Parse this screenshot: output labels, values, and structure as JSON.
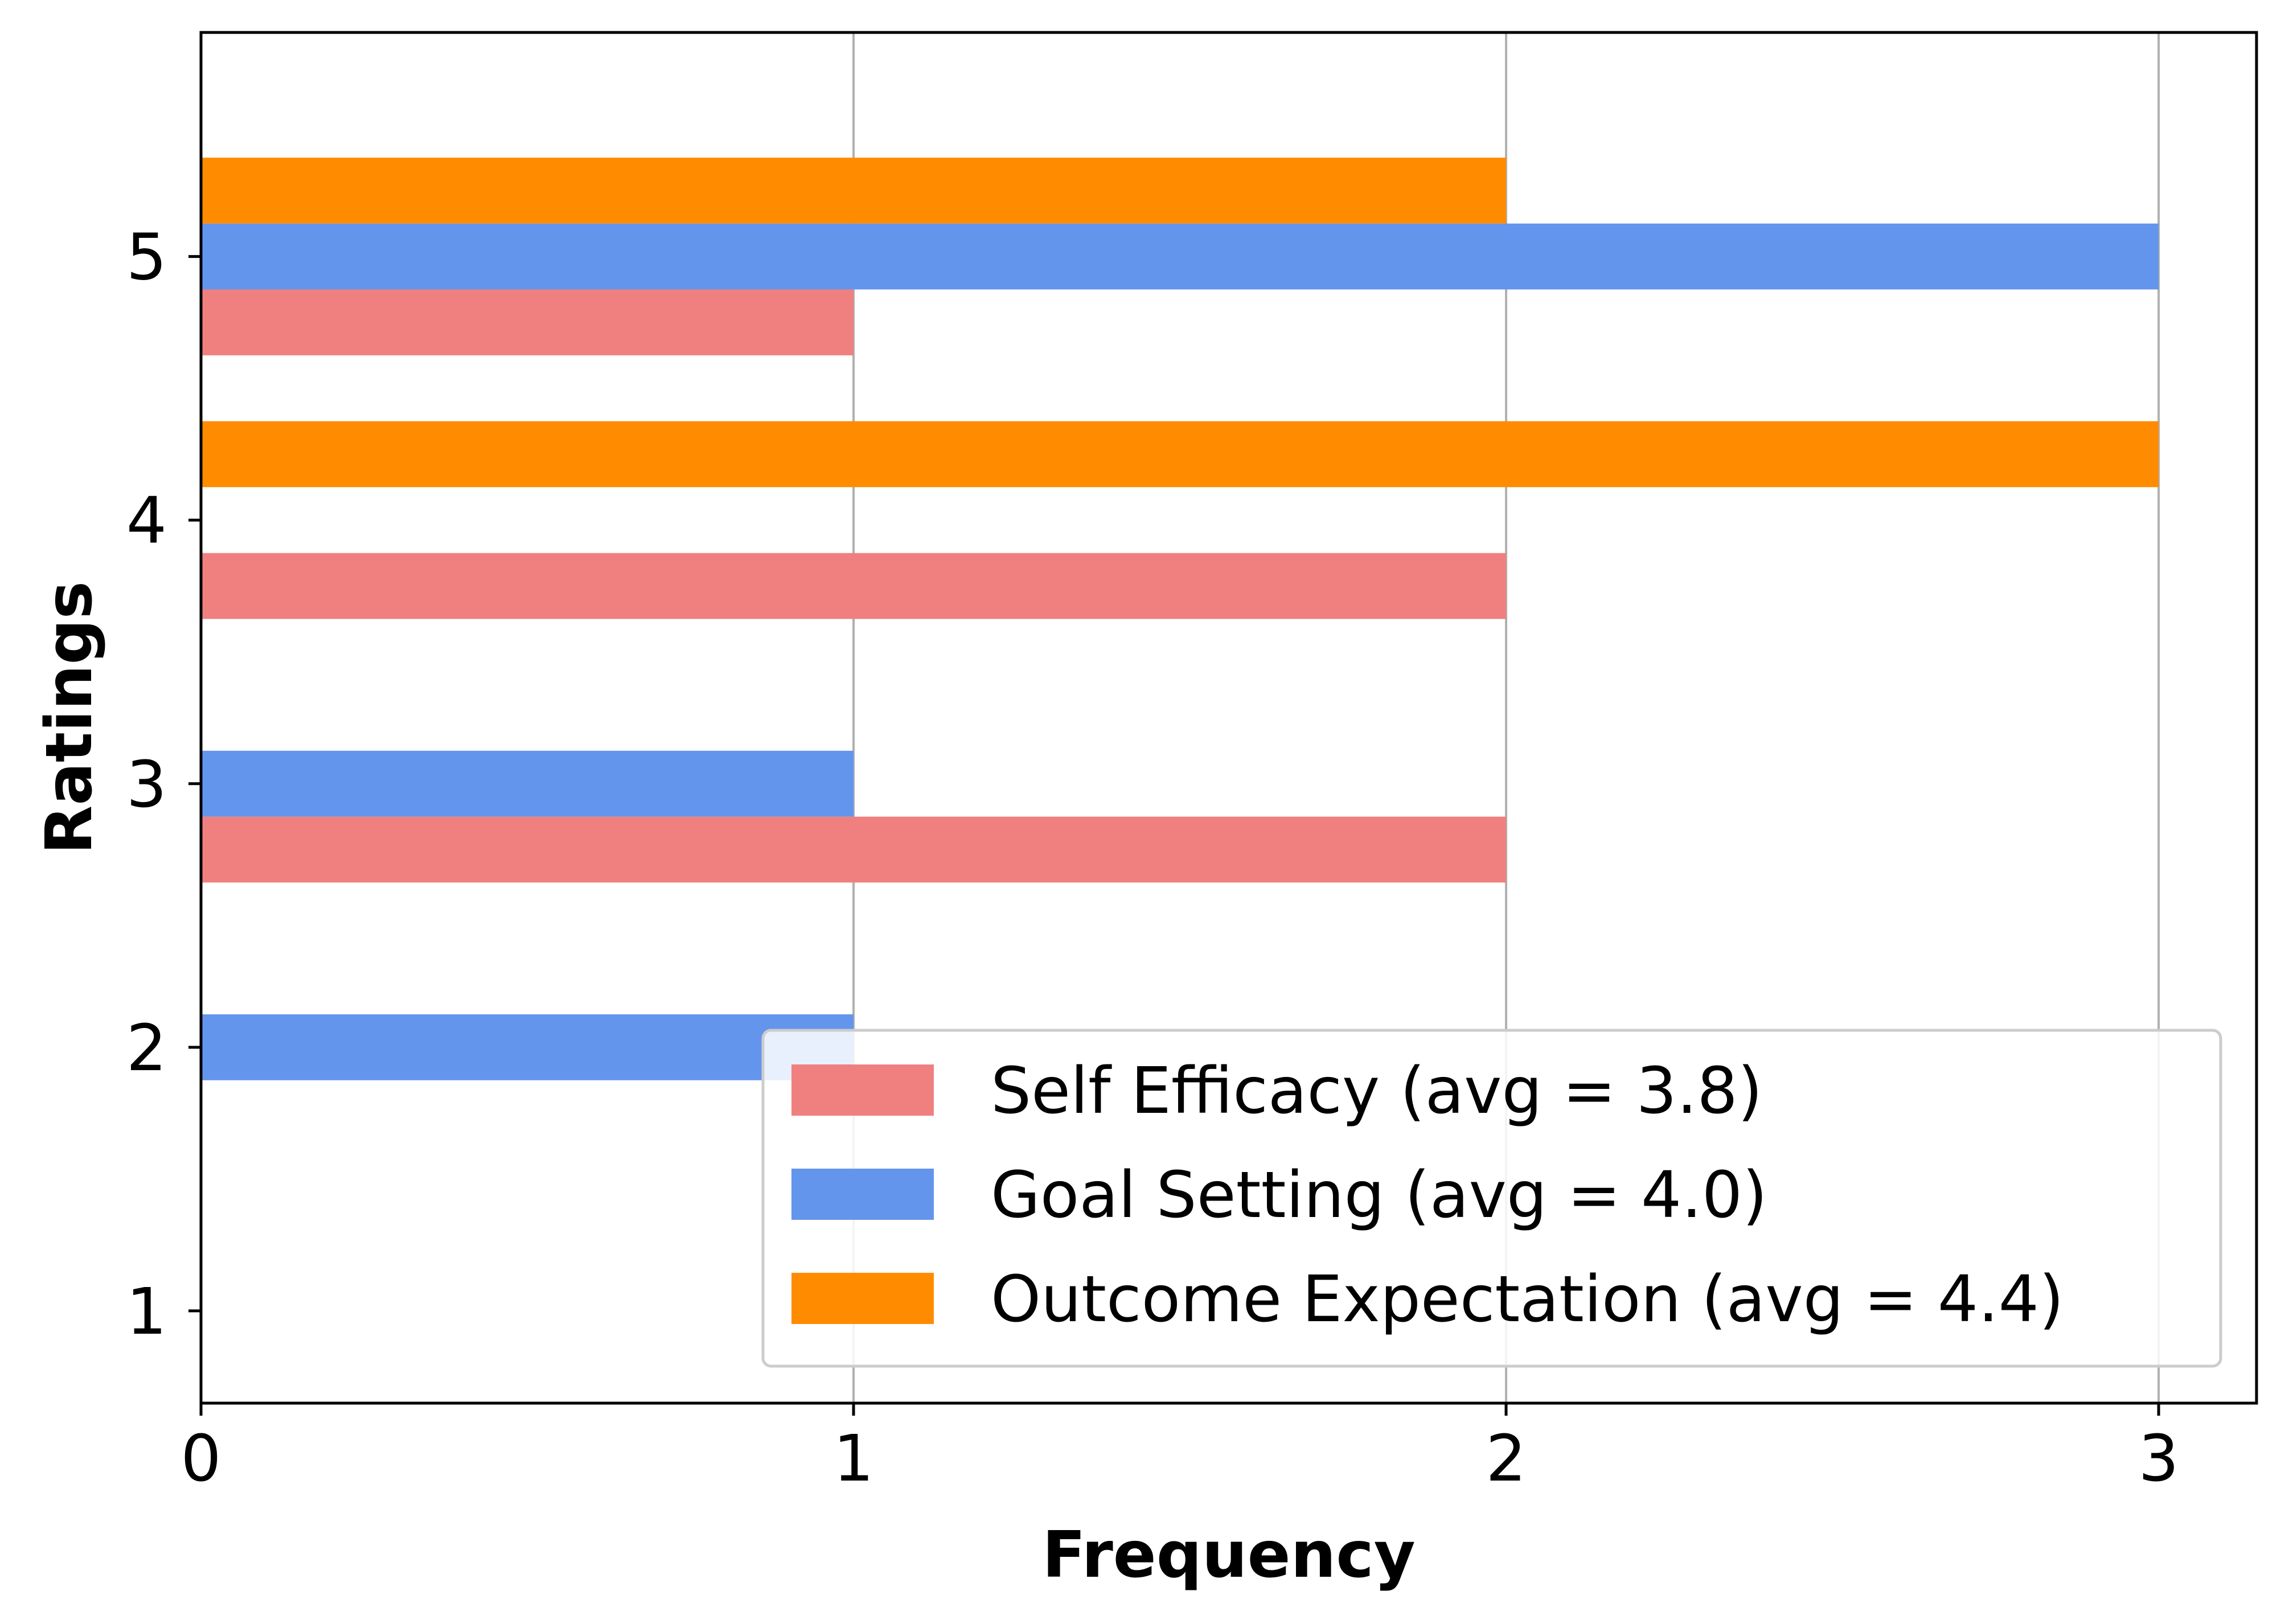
{
  "chart_data": {
    "type": "bar",
    "orientation": "horizontal",
    "title": "",
    "xlabel": "Frequency",
    "ylabel": "Ratings",
    "categories": [
      "1",
      "2",
      "3",
      "4",
      "5"
    ],
    "series": [
      {
        "name": "Self Efficacy (avg = 3.8)",
        "color": "#f08080",
        "values": [
          0,
          0,
          2,
          2,
          1
        ]
      },
      {
        "name": "Goal Setting (avg = 4.0)",
        "color": "#6495ed",
        "values": [
          0,
          1,
          1,
          0,
          3
        ]
      },
      {
        "name": "Outcome Expectation (avg = 4.4)",
        "color": "#ff8c00",
        "values": [
          0,
          0,
          0,
          3,
          2
        ]
      }
    ],
    "xlim": [
      0,
      3.15
    ],
    "ylim": [
      0.65,
      5.85
    ],
    "xticks": [
      "0",
      "1",
      "2",
      "3"
    ],
    "yticks": [
      "1",
      "2",
      "3",
      "4",
      "5"
    ],
    "grid": "x-axis vertical lines",
    "legend_position": "lower-right"
  }
}
